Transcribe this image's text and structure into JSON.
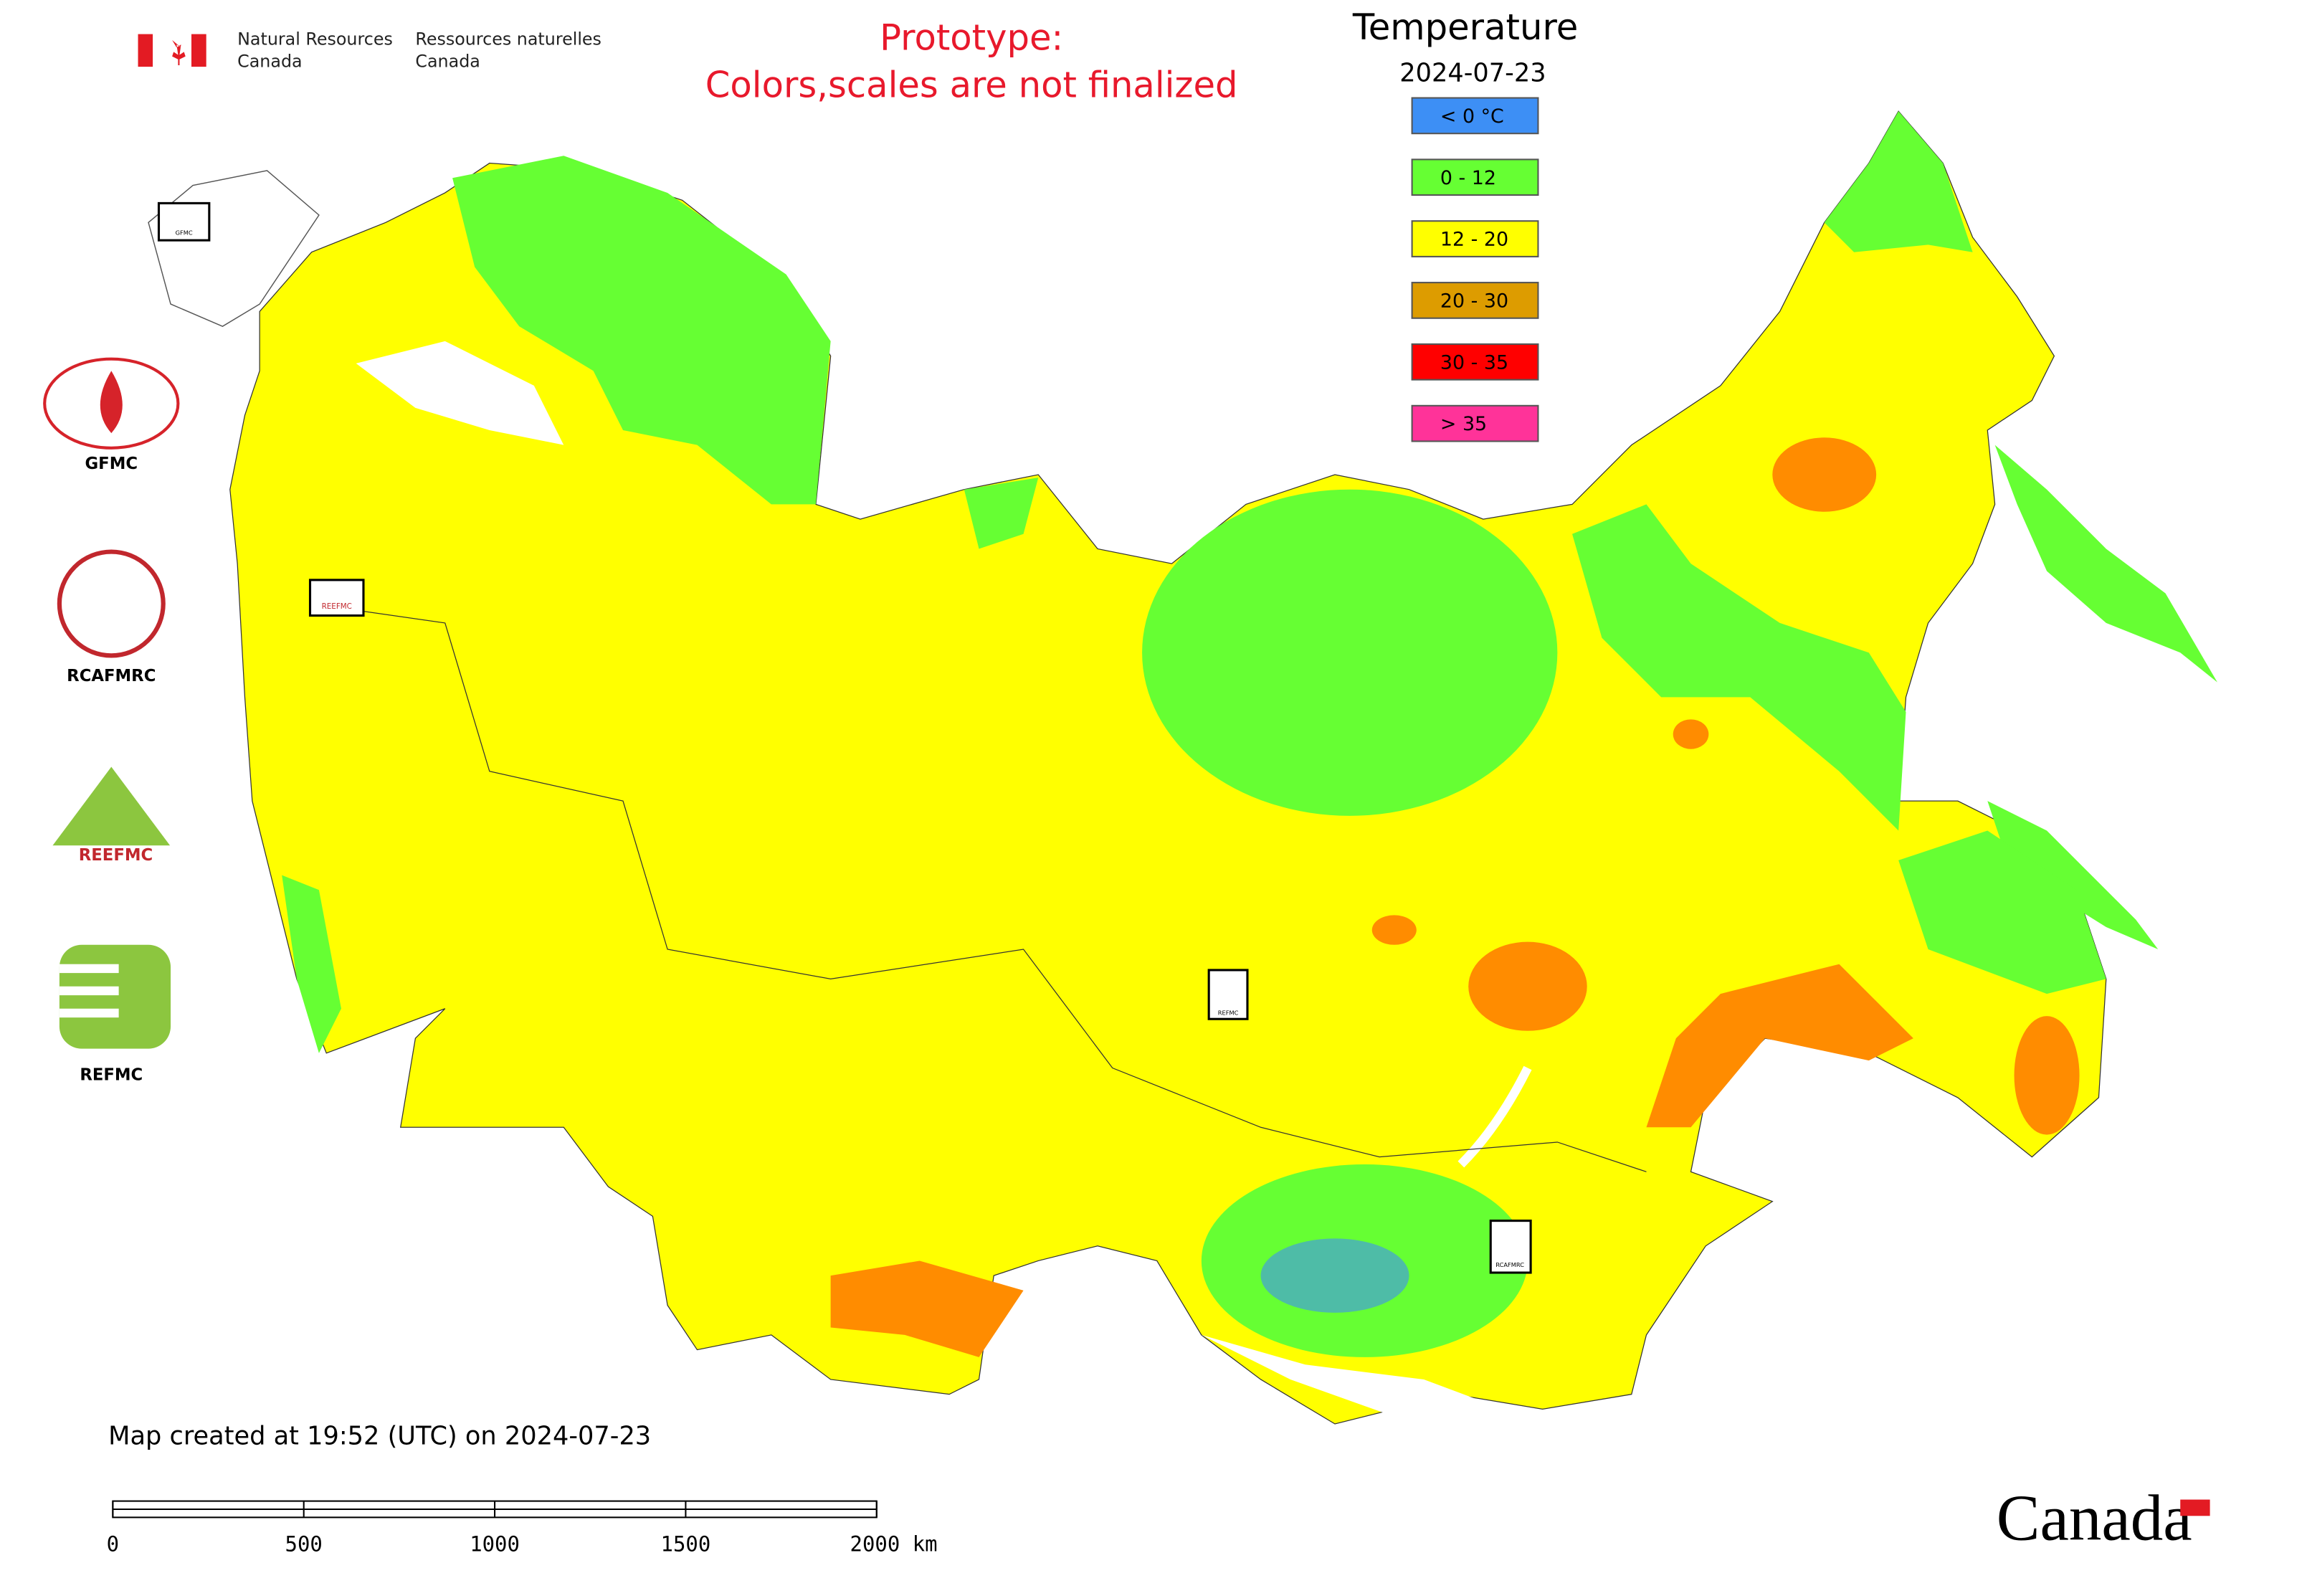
{
  "header": {
    "dept_en_1": "Natural Resources",
    "dept_en_2": "Canada",
    "dept_fr_1": "Ressources naturelles",
    "dept_fr_2": "Canada"
  },
  "notice": {
    "line1": "Prototype:",
    "line2": "Colors,scales are not finalized"
  },
  "legend": {
    "title": "Temperature",
    "date": "2024-07-23",
    "items": [
      {
        "label": "< 0 °C",
        "color": "#3d8ff5"
      },
      {
        "label": "0 - 12",
        "color": "#66ff33"
      },
      {
        "label": "12 - 20",
        "color": "#ffff00"
      },
      {
        "label": "20 - 30",
        "color": "#dd9c00"
      },
      {
        "label": "30 - 35",
        "color": "#ff0000"
      },
      {
        "label": "> 35",
        "color": "#ff3399"
      }
    ]
  },
  "logos": [
    "GFMC",
    "RCAFMRC",
    "REEFMC",
    "REFMC"
  ],
  "map_markers": [
    "GFMC",
    "REEFMC",
    "REFMC",
    "RCAFMRC"
  ],
  "footer": {
    "created": "Map created at 19:52 (UTC) on 2024-07-23",
    "wordmark": "Canada"
  },
  "scale_bar": {
    "labels": [
      "0",
      "500",
      "1000",
      "1500",
      "2000 km"
    ]
  }
}
